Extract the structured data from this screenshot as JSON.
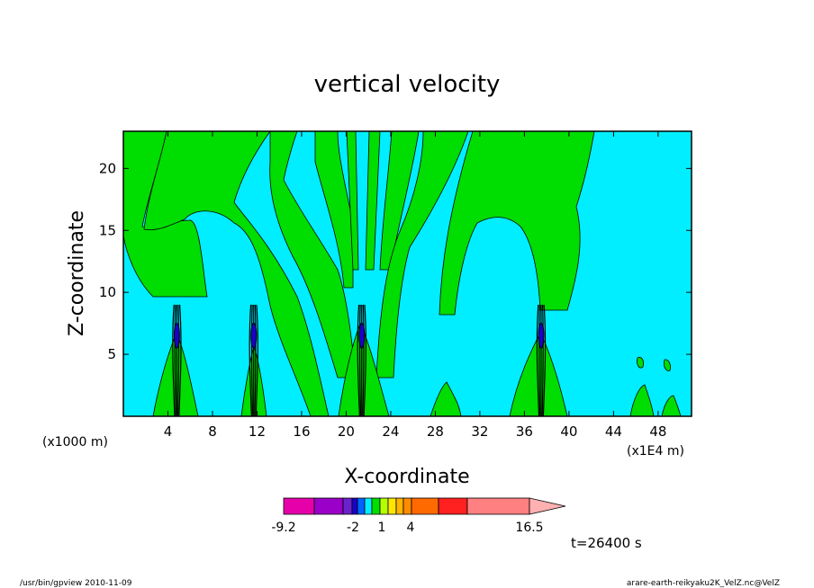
{
  "chart_data": {
    "type": "heatmap",
    "title": "vertical velocity",
    "xlabel": "X-coordinate",
    "ylabel": "Z-coordinate",
    "x_unit_left": "(x1000 m)",
    "x_unit_right": "(x1E4 m)",
    "xlim": [
      0,
      51
    ],
    "ylim": [
      0,
      23
    ],
    "x_ticks": [
      4,
      8,
      12,
      16,
      20,
      24,
      28,
      32,
      36,
      40,
      44,
      48
    ],
    "y_ticks": [
      5,
      10,
      15,
      20
    ],
    "background_color": "#00eeff",
    "positive_color": "#00dd00",
    "legend": {
      "colors": [
        "#e600aa",
        "#9a00c8",
        "#6a22cc",
        "#1b00c8",
        "#0064ff",
        "#00eeff",
        "#00dd00",
        "#b4ff00",
        "#ffe600",
        "#ffb400",
        "#ff8c00",
        "#ff6a00",
        "#ff2020",
        "#ff8080"
      ],
      "labels": [
        "-9.2",
        "-2",
        "1",
        "4",
        "16.5"
      ]
    },
    "time_label": "t=26400 s",
    "updraft_columns_x": [
      4.8,
      11.7,
      21.4,
      37.5
    ]
  },
  "footer": {
    "left": "/usr/bin/gpview   2010-11-09",
    "right": "arare-earth-reikyaku2K_VelZ.nc@VelZ"
  }
}
